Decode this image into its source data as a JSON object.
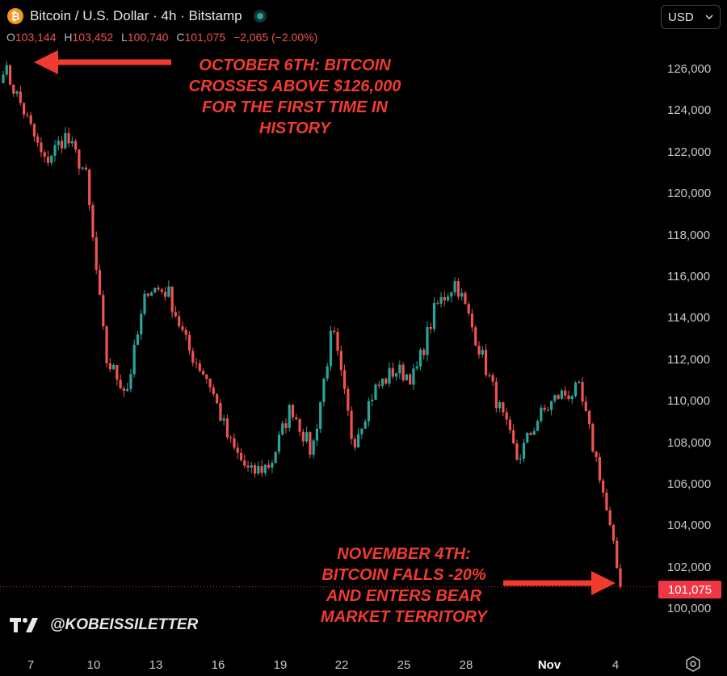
{
  "header": {
    "title": "Bitcoin / U.S. Dollar · 4h · Bitstamp",
    "icon": "bitcoin-icon",
    "live_indicator": "live-dot-icon",
    "ohlc": {
      "o_label": "O",
      "o": "103,144",
      "h_label": "H",
      "h": "103,452",
      "l_label": "L",
      "l": "100,740",
      "c_label": "C",
      "c": "101,075",
      "change": "−2,065 (−2.00%)"
    },
    "currency_selector": "USD"
  },
  "annotations": {
    "top": [
      "OCTOBER 6TH: BITCOIN",
      "CROSSES ABOVE $126,000",
      "FOR THE FIRST TIME IN",
      "HISTORY"
    ],
    "bottom": [
      "NOVEMBER 4TH:",
      "BITCOIN FALLS -20%",
      "AND ENTERS BEAR",
      "MARKET TERRITORY"
    ]
  },
  "watermark": "@KOBEISSILETTER",
  "last_price_label": "101,075",
  "colors": {
    "up": "#26a69a",
    "down": "#ef5350",
    "annotation": "#f23b2f",
    "price_tag": "#f23645"
  },
  "chart_data": {
    "type": "line",
    "candlestick": true,
    "y_ticks": [
      "126,000",
      "124,000",
      "122,000",
      "120,000",
      "118,000",
      "116,000",
      "114,000",
      "112,000",
      "110,000",
      "108,000",
      "106,000",
      "104,000",
      "102,000",
      "100,000"
    ],
    "x_ticks": [
      "7",
      "10",
      "13",
      "16",
      "19",
      "22",
      "25",
      "28",
      "Nov",
      "4"
    ],
    "ylim": [
      100000,
      126300
    ],
    "x": [
      "Oct 6",
      "Oct 7",
      "Oct 8",
      "Oct 9",
      "Oct 10",
      "Oct 10 late",
      "Oct 11",
      "Oct 12",
      "Oct 13",
      "Oct 14",
      "Oct 15",
      "Oct 16",
      "Oct 17",
      "Oct 18",
      "Oct 19",
      "Oct 20",
      "Oct 21",
      "Oct 22",
      "Oct 23",
      "Oct 24",
      "Oct 25",
      "Oct 26",
      "Oct 27",
      "Oct 28",
      "Oct 29",
      "Oct 30",
      "Oct 31",
      "Nov 1",
      "Nov 2",
      "Nov 3",
      "Nov 4"
    ],
    "series": [
      {
        "values": [
          126200,
          124000,
          121500,
          122800,
          121000,
          112000,
          110500,
          115500,
          115300,
          112500,
          111000,
          108000,
          106500,
          107000,
          109800,
          107500,
          113500,
          108000,
          110500,
          111500,
          111200,
          114500,
          115800,
          113000,
          110000,
          107200,
          109200,
          110300,
          110500,
          106500,
          101075
        ]
      }
    ],
    "grid": false,
    "legend": "none"
  }
}
